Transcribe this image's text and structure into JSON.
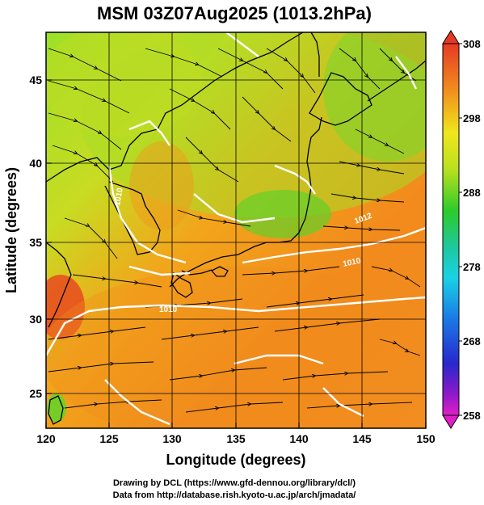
{
  "title": "MSM 03Z07Aug2025 (1013.2hPa)",
  "x_axis": {
    "label": "Longitude (degrees)",
    "ticks": [
      "120",
      "125",
      "130",
      "135",
      "140",
      "145",
      "150"
    ]
  },
  "y_axis": {
    "label": "Latitude  (degrees)",
    "ticks": [
      "25",
      "30",
      "35",
      "40",
      "45"
    ]
  },
  "colorbar": {
    "ticks": [
      "308",
      "298",
      "288",
      "278",
      "268",
      "258"
    ],
    "min": 258,
    "max": 308
  },
  "isobar_labels": [
    "1010",
    "1010",
    "1010",
    "1012"
  ],
  "credits": {
    "line1": "Drawing by DCL (https://www.gfd-dennou.org/library/dcl/)",
    "line2": "Data from http://database.rish.kyoto-u.ac.jp/arch/jmadata/"
  }
}
